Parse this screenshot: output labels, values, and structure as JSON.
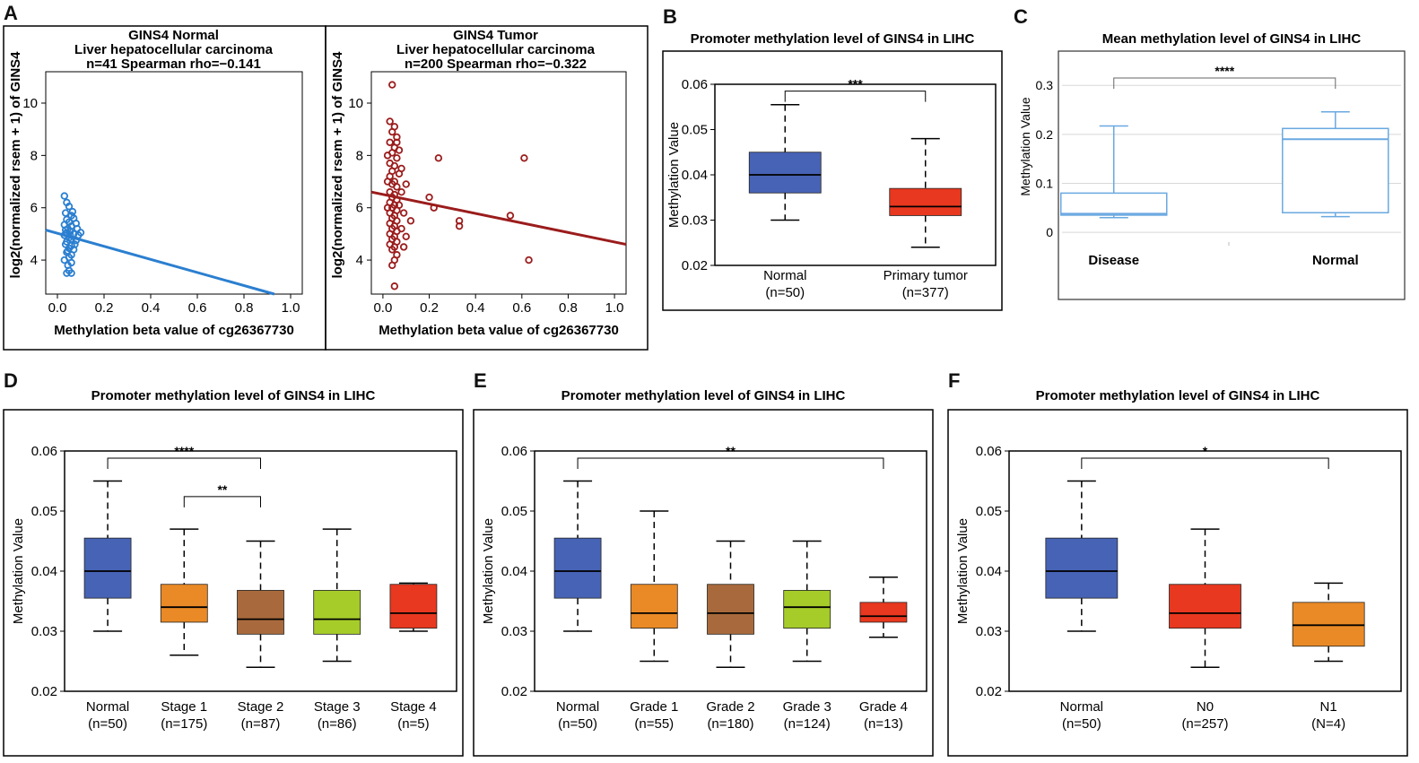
{
  "chart_data": [
    {
      "panel": "A",
      "type": "scatter",
      "subtitle_lines": [
        "GINS4   Normal",
        "Liver hepatocellular carcinoma",
        "n=41    Spearman rho=−0.141"
      ],
      "xlabel": "Methylation beta value of cg26367730",
      "ylabel": "log2(normalized rsem + 1) of GINS4",
      "xlim": [
        -0.05,
        1.05
      ],
      "ylim": [
        2.7,
        11.2
      ],
      "xticks": [
        0.0,
        0.2,
        0.4,
        0.6,
        0.8,
        1.0
      ],
      "xtick_labels": [
        "0.0",
        "0.2",
        "0.4",
        "0.6",
        "0.8",
        "1.0"
      ],
      "yticks": [
        4,
        6,
        8,
        10
      ],
      "ytick_labels": [
        "4",
        "6",
        "8",
        "10"
      ],
      "color": "#2b7fd0",
      "fit_line": {
        "x": [
          -0.05,
          0.93
        ],
        "y": [
          5.15,
          2.7
        ]
      },
      "points": [
        [
          0.03,
          6.45
        ],
        [
          0.04,
          6.2
        ],
        [
          0.05,
          6.05
        ],
        [
          0.035,
          5.8
        ],
        [
          0.06,
          5.7
        ],
        [
          0.04,
          5.55
        ],
        [
          0.07,
          5.6
        ],
        [
          0.05,
          5.45
        ],
        [
          0.03,
          5.35
        ],
        [
          0.06,
          5.3
        ],
        [
          0.08,
          5.4
        ],
        [
          0.045,
          5.2
        ],
        [
          0.055,
          5.1
        ],
        [
          0.04,
          5.05
        ],
        [
          0.07,
          5.0
        ],
        [
          0.03,
          4.95
        ],
        [
          0.09,
          4.95
        ],
        [
          0.05,
          4.85
        ],
        [
          0.06,
          4.8
        ],
        [
          0.04,
          4.7
        ],
        [
          0.08,
          4.75
        ],
        [
          0.035,
          4.6
        ],
        [
          0.06,
          4.55
        ],
        [
          0.05,
          4.45
        ],
        [
          0.07,
          4.4
        ],
        [
          0.04,
          4.3
        ],
        [
          0.06,
          4.2
        ],
        [
          0.05,
          4.1
        ],
        [
          0.03,
          4.0
        ],
        [
          0.06,
          3.9
        ],
        [
          0.045,
          3.8
        ],
        [
          0.05,
          3.6
        ],
        [
          0.04,
          3.5
        ],
        [
          0.06,
          3.5
        ],
        [
          0.1,
          5.05
        ],
        [
          0.085,
          5.2
        ],
        [
          0.075,
          4.6
        ],
        [
          0.065,
          5.85
        ],
        [
          0.055,
          4.95
        ],
        [
          0.035,
          5.15
        ],
        [
          0.045,
          4.35
        ]
      ]
    },
    {
      "panel": "A2",
      "type": "scatter",
      "subtitle_lines": [
        "GINS4   Tumor",
        "Liver hepatocellular carcinoma",
        "n=200    Spearman rho=−0.322"
      ],
      "xlabel": "Methylation beta value of cg26367730",
      "ylabel": "log2(normalized rsem + 1) of GINS4",
      "xlim": [
        -0.05,
        1.05
      ],
      "ylim": [
        2.7,
        11.2
      ],
      "xticks": [
        0.0,
        0.2,
        0.4,
        0.6,
        0.8,
        1.0
      ],
      "xtick_labels": [
        "0.0",
        "0.2",
        "0.4",
        "0.6",
        "0.8",
        "1.0"
      ],
      "yticks": [
        4,
        6,
        8,
        10
      ],
      "ytick_labels": [
        "4",
        "6",
        "8",
        "10"
      ],
      "color": "#9b1c1c",
      "fit_line": {
        "x": [
          -0.05,
          1.05
        ],
        "y": [
          6.6,
          4.6
        ]
      },
      "points": [
        [
          0.04,
          10.7
        ],
        [
          0.03,
          9.3
        ],
        [
          0.05,
          9.1
        ],
        [
          0.04,
          8.9
        ],
        [
          0.06,
          8.7
        ],
        [
          0.03,
          8.5
        ],
        [
          0.05,
          8.3
        ],
        [
          0.04,
          8.1
        ],
        [
          0.06,
          7.9
        ],
        [
          0.03,
          7.7
        ],
        [
          0.05,
          7.6
        ],
        [
          0.04,
          7.4
        ],
        [
          0.07,
          7.3
        ],
        [
          0.03,
          7.2
        ],
        [
          0.05,
          7.0
        ],
        [
          0.04,
          6.9
        ],
        [
          0.06,
          6.8
        ],
        [
          0.03,
          6.6
        ],
        [
          0.05,
          6.5
        ],
        [
          0.04,
          6.4
        ],
        [
          0.06,
          6.3
        ],
        [
          0.03,
          6.2
        ],
        [
          0.05,
          6.1
        ],
        [
          0.04,
          6.0
        ],
        [
          0.06,
          5.9
        ],
        [
          0.03,
          5.8
        ],
        [
          0.05,
          5.7
        ],
        [
          0.04,
          5.6
        ],
        [
          0.06,
          5.5
        ],
        [
          0.03,
          5.4
        ],
        [
          0.05,
          5.3
        ],
        [
          0.04,
          5.2
        ],
        [
          0.06,
          5.1
        ],
        [
          0.03,
          5.0
        ],
        [
          0.05,
          4.9
        ],
        [
          0.04,
          4.8
        ],
        [
          0.06,
          4.7
        ],
        [
          0.03,
          4.6
        ],
        [
          0.05,
          4.5
        ],
        [
          0.04,
          4.4
        ],
        [
          0.06,
          4.2
        ],
        [
          0.05,
          4.0
        ],
        [
          0.04,
          3.8
        ],
        [
          0.05,
          3.0
        ],
        [
          0.08,
          6.6
        ],
        [
          0.09,
          5.8
        ],
        [
          0.1,
          4.9
        ],
        [
          0.07,
          6.1
        ],
        [
          0.08,
          7.5
        ],
        [
          0.1,
          6.9
        ],
        [
          0.12,
          5.5
        ],
        [
          0.09,
          4.5
        ],
        [
          0.2,
          6.4
        ],
        [
          0.22,
          6.0
        ],
        [
          0.24,
          7.9
        ],
        [
          0.33,
          5.5
        ],
        [
          0.33,
          5.3
        ],
        [
          0.55,
          5.7
        ],
        [
          0.61,
          7.9
        ],
        [
          0.63,
          4.0
        ],
        [
          0.02,
          6.0
        ],
        [
          0.02,
          7.0
        ],
        [
          0.02,
          8.0
        ],
        [
          0.07,
          8.2
        ],
        [
          0.06,
          8.5
        ],
        [
          0.08,
          5.2
        ]
      ]
    },
    {
      "panel": "B",
      "type": "box",
      "title": "Promoter methylation level of GINS4 in LIHC",
      "ylabel": "Methylation Value",
      "ylim": [
        0.02,
        0.06
      ],
      "yticks": [
        0.02,
        0.03,
        0.04,
        0.05,
        0.06
      ],
      "ytick_labels": [
        "0.02",
        "0.03",
        "0.04",
        "0.05",
        "0.06"
      ],
      "groups": [
        {
          "name": "Normal",
          "n": "(n=50)",
          "color": "#4763b5",
          "min": 0.03,
          "q1": 0.036,
          "median": 0.04,
          "q3": 0.045,
          "max": 0.0555
        },
        {
          "name": "Primary tumor",
          "n": "(n=377)",
          "color": "#e8381f",
          "min": 0.024,
          "q1": 0.031,
          "median": 0.033,
          "q3": 0.037,
          "max": 0.048
        }
      ],
      "significance": [
        {
          "from": 0,
          "to": 1,
          "label": "***",
          "y": 0.0585
        }
      ]
    },
    {
      "panel": "C",
      "type": "box",
      "title": "Mean methylation level of GINS4 in LIHC",
      "ylabel": "Methylation Value",
      "ylim": [
        -0.02,
        0.37
      ],
      "yticks": [
        0,
        0.1,
        0.2,
        0.3
      ],
      "ytick_labels": [
        "0",
        "0.1",
        "0.2",
        "0.3"
      ],
      "groups": [
        {
          "name": "Disease",
          "color": "#6aa8e0",
          "min": 0.03,
          "q1": 0.035,
          "median": 0.038,
          "q3": 0.08,
          "max": 0.217
        },
        {
          "name": "Normal",
          "color": "#6aa8e0",
          "min": 0.032,
          "q1": 0.04,
          "median": 0.19,
          "q3": 0.212,
          "max": 0.246
        }
      ],
      "significance": [
        {
          "from": 0,
          "to": 1,
          "label": "****",
          "y": 0.315
        }
      ]
    },
    {
      "panel": "D",
      "type": "box",
      "title": "Promoter methylation level of GINS4 in LIHC",
      "ylabel": "Methylation Value",
      "ylim": [
        0.02,
        0.06
      ],
      "yticks": [
        0.02,
        0.03,
        0.04,
        0.05,
        0.06
      ],
      "ytick_labels": [
        "0.02",
        "0.03",
        "0.04",
        "0.05",
        "0.06"
      ],
      "groups": [
        {
          "name": "Normal",
          "n": "(n=50)",
          "color": "#4763b5",
          "min": 0.03,
          "q1": 0.0355,
          "median": 0.04,
          "q3": 0.0455,
          "max": 0.055
        },
        {
          "name": "Stage 1",
          "n": "(n=175)",
          "color": "#ea8a26",
          "min": 0.026,
          "q1": 0.0315,
          "median": 0.034,
          "q3": 0.0378,
          "max": 0.047
        },
        {
          "name": "Stage 2",
          "n": "(n=87)",
          "color": "#a86a3c",
          "min": 0.024,
          "q1": 0.0295,
          "median": 0.032,
          "q3": 0.0368,
          "max": 0.045
        },
        {
          "name": "Stage 3",
          "n": "(n=86)",
          "color": "#a6cc2a",
          "min": 0.025,
          "q1": 0.0295,
          "median": 0.032,
          "q3": 0.0368,
          "max": 0.047
        },
        {
          "name": "Stage 4",
          "n": "(n=5)",
          "color": "#e8381f",
          "min": 0.03,
          "q1": 0.0305,
          "median": 0.033,
          "q3": 0.0378,
          "max": 0.038
        }
      ],
      "significance": [
        {
          "from": 0,
          "to": 2,
          "label": "****",
          "y": 0.0588
        },
        {
          "from": 1,
          "to": 2,
          "label": "**",
          "y": 0.0524
        }
      ]
    },
    {
      "panel": "E",
      "type": "box",
      "title": "Promoter methylation level of GINS4 in LIHC",
      "ylabel": "Methylation Value",
      "ylim": [
        0.02,
        0.06
      ],
      "yticks": [
        0.02,
        0.03,
        0.04,
        0.05,
        0.06
      ],
      "ytick_labels": [
        "0.02",
        "0.03",
        "0.04",
        "0.05",
        "0.06"
      ],
      "groups": [
        {
          "name": "Normal",
          "n": "(n=50)",
          "color": "#4763b5",
          "min": 0.03,
          "q1": 0.0355,
          "median": 0.04,
          "q3": 0.0455,
          "max": 0.055
        },
        {
          "name": "Grade 1",
          "n": "(n=55)",
          "color": "#ea8a26",
          "min": 0.025,
          "q1": 0.0305,
          "median": 0.033,
          "q3": 0.0378,
          "max": 0.05
        },
        {
          "name": "Grade 2",
          "n": "(n=180)",
          "color": "#a86a3c",
          "min": 0.024,
          "q1": 0.0295,
          "median": 0.033,
          "q3": 0.0378,
          "max": 0.045
        },
        {
          "name": "Grade 3",
          "n": "(n=124)",
          "color": "#a6cc2a",
          "min": 0.025,
          "q1": 0.0305,
          "median": 0.034,
          "q3": 0.0368,
          "max": 0.045
        },
        {
          "name": "Grade 4",
          "n": "(n=13)",
          "color": "#e8381f",
          "min": 0.029,
          "q1": 0.0315,
          "median": 0.0325,
          "q3": 0.0348,
          "max": 0.039
        }
      ],
      "significance": [
        {
          "from": 0,
          "to": 4,
          "label": "**",
          "y": 0.0588
        }
      ]
    },
    {
      "panel": "F",
      "type": "box",
      "title": "Promoter methylation level of GINS4 in LIHC",
      "ylabel": "Methylation Value",
      "ylim": [
        0.02,
        0.06
      ],
      "yticks": [
        0.02,
        0.03,
        0.04,
        0.05,
        0.06
      ],
      "ytick_labels": [
        "0.02",
        "0.03",
        "0.04",
        "0.05",
        "0.06"
      ],
      "groups": [
        {
          "name": "Normal",
          "n": "(n=50)",
          "color": "#4763b5",
          "min": 0.03,
          "q1": 0.0355,
          "median": 0.04,
          "q3": 0.0455,
          "max": 0.055
        },
        {
          "name": "N0",
          "n": "(n=257)",
          "color": "#e8381f",
          "min": 0.024,
          "q1": 0.0305,
          "median": 0.033,
          "q3": 0.0378,
          "max": 0.047
        },
        {
          "name": "N1",
          "n": "(N=4)",
          "color": "#ea8a26",
          "min": 0.025,
          "q1": 0.0275,
          "median": 0.031,
          "q3": 0.0348,
          "max": 0.038
        }
      ],
      "significance": [
        {
          "from": 0,
          "to": 2,
          "label": "*",
          "y": 0.0588
        }
      ]
    }
  ],
  "panel_labels": {
    "A": "A",
    "B": "B",
    "C": "C",
    "D": "D",
    "E": "E",
    "F": "F"
  }
}
